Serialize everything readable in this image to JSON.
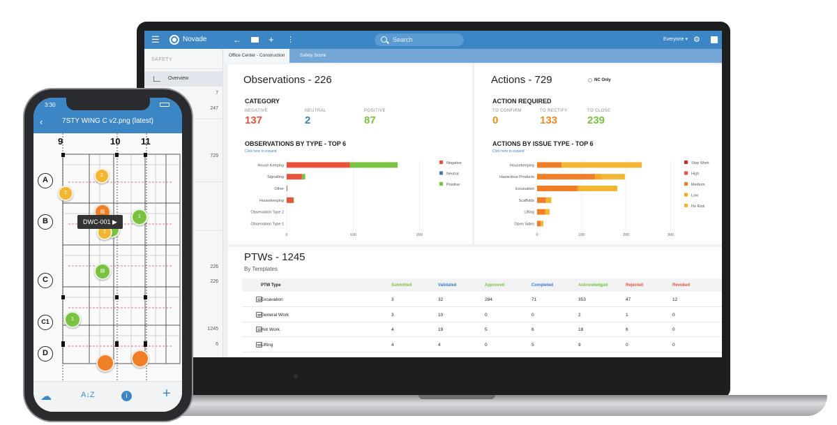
{
  "laptop": {
    "app": {
      "brand": "Novade",
      "search_placeholder": "Search",
      "user_filter": "Everyone ▾",
      "icons": [
        "menu-icon",
        "back-arrow-icon",
        "briefcase-icon",
        "plus-icon",
        "more-vert-icon",
        "search-icon",
        "gear-icon",
        "profile-icon"
      ],
      "sidebar": {
        "section": "SAFETY",
        "active_item": "Overview",
        "counts": [
          "7",
          "247",
          "729",
          "226",
          "226",
          "1245",
          "6"
        ],
        "partial_letter": "K"
      },
      "tabs": [
        "Office Center - Construction",
        "Safety Score"
      ],
      "observations": {
        "title": "Observations - 226",
        "category_heading": "CATEGORY",
        "categories": [
          {
            "label": "NEGATIVE",
            "value": "137",
            "color": "#e8523a"
          },
          {
            "label": "NEUTRAL",
            "value": "2",
            "color": "#3e7ac0"
          },
          {
            "label": "POSITIVE",
            "value": "87",
            "color": "#7cc242"
          }
        ],
        "chart_heading": "OBSERVATIONS BY TYPE - TOP 6",
        "expand_link": "Click here to expand"
      },
      "actions": {
        "title": "Actions - 729",
        "nc_only": "NC Only",
        "heading": "ACTION REQUIRED",
        "stats": [
          {
            "label": "TO CONFIRM",
            "value": "0",
            "color": "#f08a1c"
          },
          {
            "label": "TO RECTIFY",
            "value": "133",
            "color": "#f08a1c"
          },
          {
            "label": "TO CLOSE",
            "value": "239",
            "color": "#7cc242"
          }
        ],
        "chart_heading": "ACTIONS BY ISSUE TYPE - TOP 6",
        "expand_link": "Click here to expand"
      },
      "ptw": {
        "title": "PTWs - 1245",
        "subtitle": "By Templates",
        "columns": [
          {
            "label": "PTW Type",
            "color": "#222222"
          },
          {
            "label": "Submitted",
            "color": "#7cc242"
          },
          {
            "label": "Validated",
            "color": "#3e7ac0"
          },
          {
            "label": "Approved",
            "color": "#7cc242"
          },
          {
            "label": "Completed",
            "color": "#3e7ac0"
          },
          {
            "label": "Acknowledged",
            "color": "#7cc242"
          },
          {
            "label": "Rejected",
            "color": "#e8523a"
          },
          {
            "label": "Revoked",
            "color": "#e8523a"
          }
        ],
        "rows": [
          [
            "Excavation",
            "3",
            "32",
            "284",
            "71",
            "353",
            "47",
            "12"
          ],
          [
            "General Work",
            "3",
            "10",
            "0",
            "0",
            "2",
            "1",
            "0"
          ],
          [
            "Hot Work",
            "4",
            "19",
            "5",
            "6",
            "18",
            "6",
            "0"
          ],
          [
            "Lifting",
            "4",
            "4",
            "0",
            "5",
            "9",
            "0",
            "0"
          ]
        ]
      }
    }
  },
  "chart_data": [
    {
      "type": "bar",
      "orientation": "horizontal",
      "stacked": true,
      "title": "OBSERVATIONS BY TYPE - TOP 6",
      "categories": [
        "House Keeping",
        "Signalling",
        "Other",
        "Housekeeping",
        "Observation Type 2",
        "Observation Type 1"
      ],
      "series": [
        {
          "name": "Negative",
          "color": "#e8523a",
          "values": [
            95,
            23,
            1,
            10,
            0,
            0
          ]
        },
        {
          "name": "Neutral",
          "color": "#3e7ac0",
          "values": [
            0,
            0,
            0,
            0,
            0,
            0
          ]
        },
        {
          "name": "Positive",
          "color": "#7cc242",
          "values": [
            72,
            5,
            0,
            1,
            0,
            0
          ]
        }
      ],
      "xlim": [
        0,
        210
      ],
      "xticks": [
        "0",
        "100",
        "200"
      ],
      "legend": "right",
      "grid": true
    },
    {
      "type": "bar",
      "orientation": "horizontal",
      "stacked": true,
      "title": "ACTIONS BY ISSUE TYPE - TOP 6",
      "categories": [
        "Housekeeping",
        "Hazardous Products",
        "Excavation",
        "Scaffolds",
        "Lifting",
        "Open Sides"
      ],
      "series": [
        {
          "name": "Stop Work",
          "color": "#c9302c",
          "values": [
            0,
            0,
            0,
            0,
            0,
            0
          ]
        },
        {
          "name": "High",
          "color": "#e8523a",
          "values": [
            0,
            0,
            0,
            0,
            0,
            0
          ]
        },
        {
          "name": "Medium",
          "color": "#f07e26",
          "values": [
            55,
            130,
            90,
            20,
            18,
            8
          ]
        },
        {
          "name": "Low",
          "color": "#f5a623",
          "values": [
            0,
            15,
            5,
            0,
            0,
            0
          ]
        },
        {
          "name": "No Risk",
          "color": "#f2b633",
          "values": [
            180,
            52,
            85,
            12,
            10,
            6
          ]
        }
      ],
      "xlim": [
        0,
        310
      ],
      "xticks": [
        "0",
        "100",
        "200",
        "300"
      ],
      "legend": "right",
      "grid": true
    }
  ],
  "phone": {
    "time": "3:30",
    "title": "7STY WING C v2.png (latest)",
    "tooltip": "DWC-001 ▶",
    "grid_columns": [
      "9",
      "10",
      "11"
    ],
    "grid_rows": [
      "A",
      "B",
      "C",
      "C1",
      "D"
    ],
    "pins": [
      {
        "label": "2",
        "color": "#f2b633"
      },
      {
        "label": "2",
        "color": "#f2b633"
      },
      {
        "label": "",
        "color": "#f07e26"
      },
      {
        "label": "1",
        "color": "#7cc242"
      },
      {
        "label": "2",
        "color": "#f2b633"
      },
      {
        "label": "",
        "color": "#7cc242"
      },
      {
        "label": "",
        "color": "#7cc242"
      },
      {
        "label": "1",
        "color": "#7cc242"
      },
      {
        "label": "",
        "color": "#f07e26"
      },
      {
        "label": "",
        "color": "#f07e26"
      }
    ],
    "bottom_icons": [
      "cloud-download-icon",
      "sort-az-icon",
      "info-icon",
      "plus-icon"
    ]
  }
}
